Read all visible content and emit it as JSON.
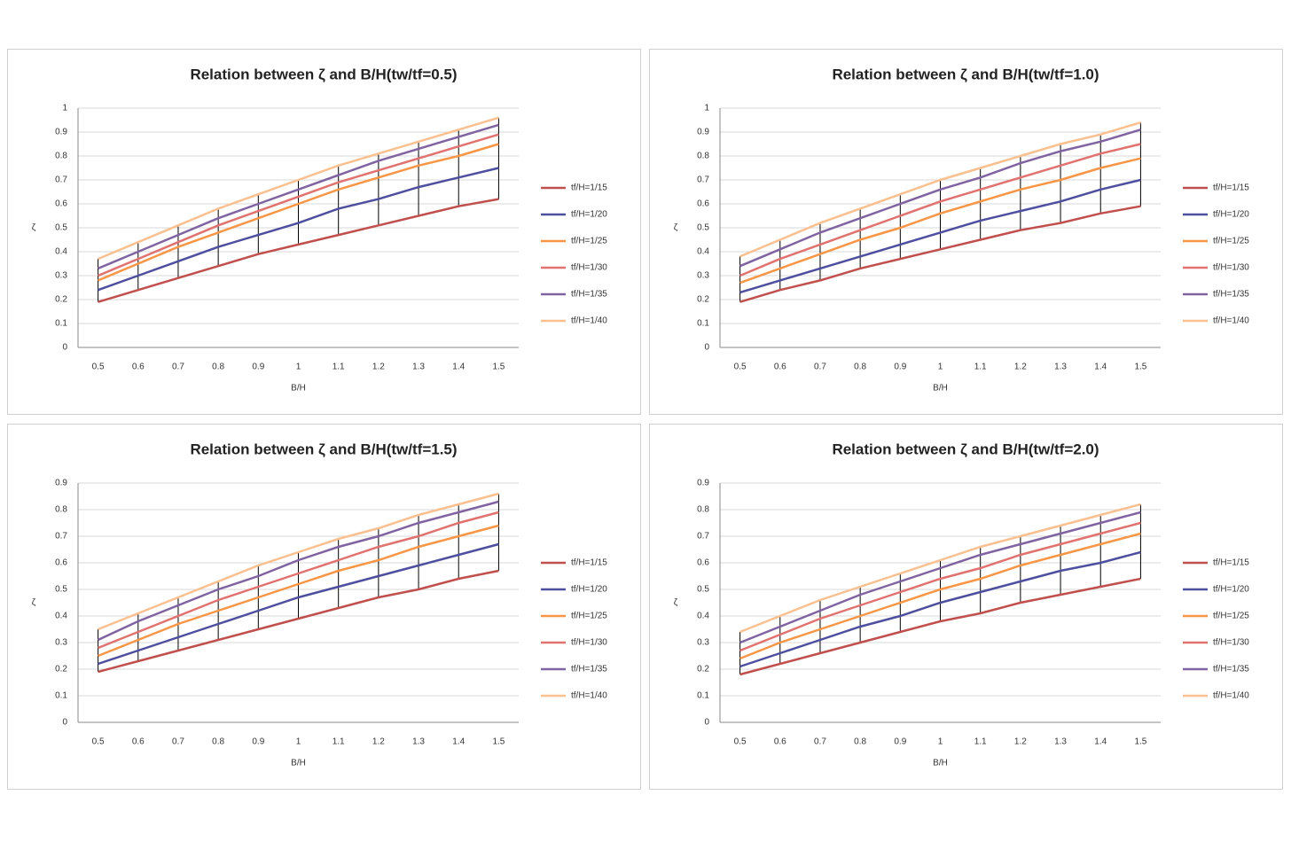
{
  "chart_data": [
    {
      "type": "line",
      "title": "Relation between ζ and B/H(tw/tf=0.5)",
      "x_label": "B/H",
      "y_label": "ζ",
      "categories": [
        "0.5",
        "0.6",
        "0.7",
        "0.8",
        "0.9",
        "1",
        "1.1",
        "1.2",
        "1.3",
        "1.4",
        "1.5"
      ],
      "ylim": [
        0,
        1
      ],
      "yticks": [
        0,
        0.1,
        0.2,
        0.3,
        0.4,
        0.5,
        0.6,
        0.7,
        0.8,
        0.9,
        1
      ],
      "grid": true,
      "hi_lo_lines": true,
      "legend": "right",
      "series": [
        {
          "name": "tf/H=1/15",
          "color": "#c0504d",
          "values": [
            0.19,
            0.24,
            0.29,
            0.34,
            0.39,
            0.43,
            0.47,
            0.51,
            0.55,
            0.59,
            0.62
          ]
        },
        {
          "name": "tf/H=1/20",
          "color": "#4f4f9f",
          "values": [
            0.24,
            0.3,
            0.36,
            0.42,
            0.47,
            0.52,
            0.58,
            0.62,
            0.67,
            0.71,
            0.75
          ]
        },
        {
          "name": "tf/H=1/25",
          "color": "#f79646",
          "values": [
            0.28,
            0.35,
            0.42,
            0.48,
            0.54,
            0.6,
            0.66,
            0.71,
            0.76,
            0.8,
            0.85
          ]
        },
        {
          "name": "tf/H=1/30",
          "color": "#e0736f",
          "values": [
            0.3,
            0.37,
            0.44,
            0.51,
            0.57,
            0.63,
            0.69,
            0.74,
            0.79,
            0.84,
            0.89
          ]
        },
        {
          "name": "tf/H=1/35",
          "color": "#8064a2",
          "values": [
            0.33,
            0.4,
            0.47,
            0.54,
            0.6,
            0.66,
            0.72,
            0.78,
            0.83,
            0.88,
            0.93
          ]
        },
        {
          "name": "tf/H=1/40",
          "color": "#fac090",
          "values": [
            0.37,
            0.44,
            0.51,
            0.58,
            0.64,
            0.7,
            0.76,
            0.81,
            0.86,
            0.91,
            0.96
          ]
        }
      ]
    },
    {
      "type": "line",
      "title": "Relation between ζ and B/H(tw/tf=1.0)",
      "x_label": "B/H",
      "y_label": "ζ",
      "categories": [
        "0.5",
        "0.6",
        "0.7",
        "0.8",
        "0.9",
        "1",
        "1.1",
        "1.2",
        "1.3",
        "1.4",
        "1.5"
      ],
      "ylim": [
        0,
        1
      ],
      "yticks": [
        0,
        0.1,
        0.2,
        0.3,
        0.4,
        0.5,
        0.6,
        0.7,
        0.8,
        0.9,
        1
      ],
      "grid": true,
      "hi_lo_lines": true,
      "legend": "right",
      "series": [
        {
          "name": "tf/H=1/15",
          "color": "#c0504d",
          "values": [
            0.19,
            0.24,
            0.28,
            0.33,
            0.37,
            0.41,
            0.45,
            0.49,
            0.52,
            0.56,
            0.59
          ]
        },
        {
          "name": "tf/H=1/20",
          "color": "#4f4f9f",
          "values": [
            0.23,
            0.28,
            0.33,
            0.38,
            0.43,
            0.48,
            0.53,
            0.57,
            0.61,
            0.66,
            0.7
          ]
        },
        {
          "name": "tf/H=1/25",
          "color": "#f79646",
          "values": [
            0.27,
            0.33,
            0.39,
            0.45,
            0.5,
            0.56,
            0.61,
            0.66,
            0.7,
            0.75,
            0.79
          ]
        },
        {
          "name": "tf/H=1/30",
          "color": "#e0736f",
          "values": [
            0.3,
            0.37,
            0.43,
            0.49,
            0.55,
            0.61,
            0.66,
            0.71,
            0.76,
            0.81,
            0.85
          ]
        },
        {
          "name": "tf/H=1/35",
          "color": "#8064a2",
          "values": [
            0.34,
            0.41,
            0.48,
            0.54,
            0.6,
            0.66,
            0.71,
            0.77,
            0.82,
            0.86,
            0.91
          ]
        },
        {
          "name": "tf/H=1/40",
          "color": "#fac090",
          "values": [
            0.38,
            0.45,
            0.52,
            0.58,
            0.64,
            0.7,
            0.75,
            0.8,
            0.85,
            0.89,
            0.94
          ]
        }
      ]
    },
    {
      "type": "line",
      "title": "Relation between ζ and B/H(tw/tf=1.5)",
      "x_label": "B/H",
      "y_label": "ζ",
      "categories": [
        "0.5",
        "0.6",
        "0.7",
        "0.8",
        "0.9",
        "1",
        "1.1",
        "1.2",
        "1.3",
        "1.4",
        "1.5"
      ],
      "ylim": [
        0,
        0.9
      ],
      "yticks": [
        0,
        0.1,
        0.2,
        0.3,
        0.4,
        0.5,
        0.6,
        0.7,
        0.8,
        0.9
      ],
      "grid": true,
      "hi_lo_lines": true,
      "legend": "right",
      "series": [
        {
          "name": "tf/H=1/15",
          "color": "#c0504d",
          "values": [
            0.19,
            0.23,
            0.27,
            0.31,
            0.35,
            0.39,
            0.43,
            0.47,
            0.5,
            0.54,
            0.57
          ]
        },
        {
          "name": "tf/H=1/20",
          "color": "#4f4f9f",
          "values": [
            0.22,
            0.27,
            0.32,
            0.37,
            0.42,
            0.47,
            0.51,
            0.55,
            0.59,
            0.63,
            0.67
          ]
        },
        {
          "name": "tf/H=1/25",
          "color": "#f79646",
          "values": [
            0.25,
            0.31,
            0.37,
            0.42,
            0.47,
            0.52,
            0.57,
            0.61,
            0.66,
            0.7,
            0.74
          ]
        },
        {
          "name": "tf/H=1/30",
          "color": "#e0736f",
          "values": [
            0.28,
            0.34,
            0.4,
            0.46,
            0.51,
            0.56,
            0.61,
            0.66,
            0.7,
            0.75,
            0.79
          ]
        },
        {
          "name": "tf/H=1/35",
          "color": "#8064a2",
          "values": [
            0.31,
            0.38,
            0.44,
            0.5,
            0.55,
            0.61,
            0.66,
            0.7,
            0.75,
            0.79,
            0.83
          ]
        },
        {
          "name": "tf/H=1/40",
          "color": "#fac090",
          "values": [
            0.35,
            0.41,
            0.47,
            0.53,
            0.59,
            0.64,
            0.69,
            0.73,
            0.78,
            0.82,
            0.86
          ]
        }
      ]
    },
    {
      "type": "line",
      "title": "Relation between ζ and B/H(tw/tf=2.0)",
      "x_label": "B/H",
      "y_label": "ζ",
      "categories": [
        "0.5",
        "0.6",
        "0.7",
        "0.8",
        "0.9",
        "1",
        "1.1",
        "1.2",
        "1.3",
        "1.4",
        "1.5"
      ],
      "ylim": [
        0,
        0.9
      ],
      "yticks": [
        0,
        0.1,
        0.2,
        0.3,
        0.4,
        0.5,
        0.6,
        0.7,
        0.8,
        0.9
      ],
      "grid": true,
      "hi_lo_lines": true,
      "legend": "right",
      "series": [
        {
          "name": "tf/H=1/15",
          "color": "#c0504d",
          "values": [
            0.18,
            0.22,
            0.26,
            0.3,
            0.34,
            0.38,
            0.41,
            0.45,
            0.48,
            0.51,
            0.54
          ]
        },
        {
          "name": "tf/H=1/20",
          "color": "#4f4f9f",
          "values": [
            0.21,
            0.26,
            0.31,
            0.36,
            0.4,
            0.45,
            0.49,
            0.53,
            0.57,
            0.6,
            0.64
          ]
        },
        {
          "name": "tf/H=1/25",
          "color": "#f79646",
          "values": [
            0.24,
            0.3,
            0.35,
            0.4,
            0.45,
            0.5,
            0.54,
            0.59,
            0.63,
            0.67,
            0.71
          ]
        },
        {
          "name": "tf/H=1/30",
          "color": "#e0736f",
          "values": [
            0.27,
            0.33,
            0.39,
            0.44,
            0.49,
            0.54,
            0.58,
            0.63,
            0.67,
            0.71,
            0.75
          ]
        },
        {
          "name": "tf/H=1/35",
          "color": "#8064a2",
          "values": [
            0.3,
            0.36,
            0.42,
            0.48,
            0.53,
            0.58,
            0.63,
            0.67,
            0.71,
            0.75,
            0.79
          ]
        },
        {
          "name": "tf/H=1/40",
          "color": "#fac090",
          "values": [
            0.34,
            0.4,
            0.46,
            0.51,
            0.56,
            0.61,
            0.66,
            0.7,
            0.74,
            0.78,
            0.82
          ]
        }
      ]
    }
  ]
}
